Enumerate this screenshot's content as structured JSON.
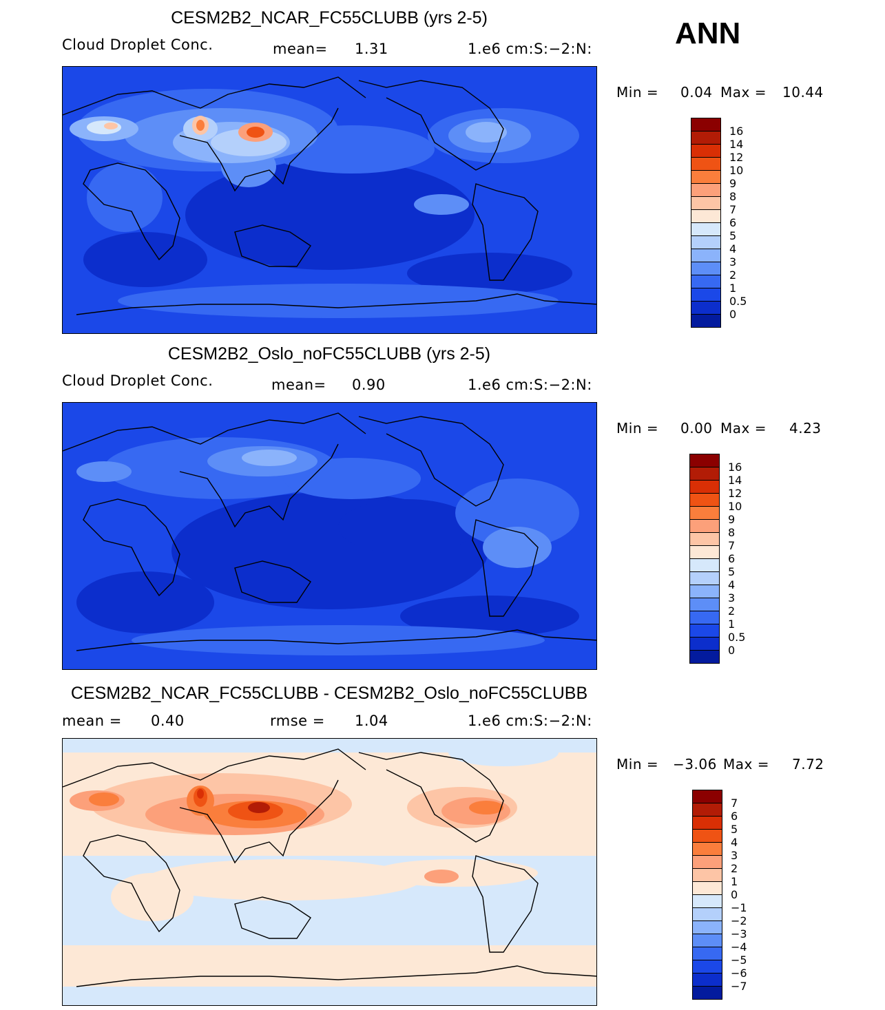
{
  "season": "ANN",
  "panels": [
    {
      "title": "CESM2B2_NCAR_FC55CLUBB (yrs 2-5)",
      "variable": "Cloud Droplet Conc.",
      "stat_text": "mean=",
      "stat_value": "1.31",
      "units": "1.e6 cm:S:-2:N:",
      "min_label": "Min =",
      "min_value": "0.04",
      "max_label": "Max =",
      "max_value": "10.44",
      "colorbar_labels": [
        "16",
        "14",
        "12",
        "10",
        "9",
        "8",
        "7",
        "6",
        "5",
        "4",
        "3",
        "2",
        "1",
        "0.5",
        "0"
      ],
      "colors": [
        "#8b0000",
        "#b21c06",
        "#d92f05",
        "#ef5314",
        "#fa7e3c",
        "#fca07a",
        "#fdc5a6",
        "#fde8d6",
        "#d6e8fb",
        "#b4d0fb",
        "#8bb3fb",
        "#5d8ef7",
        "#3769f2",
        "#1b48e8",
        "#0c2ecc",
        "#031b9e"
      ]
    },
    {
      "title": "CESM2B2_Oslo_noFC55CLUBB (yrs 2-5)",
      "variable": "Cloud Droplet Conc.",
      "stat_text": "mean=",
      "stat_value": "0.90",
      "units": "1.e6 cm:S:-2:N:",
      "min_label": "Min =",
      "min_value": "0.00",
      "max_label": "Max =",
      "max_value": "4.23",
      "colorbar_labels": [
        "16",
        "14",
        "12",
        "10",
        "9",
        "8",
        "7",
        "6",
        "5",
        "4",
        "3",
        "2",
        "1",
        "0.5",
        "0"
      ],
      "colors": [
        "#8b0000",
        "#b21c06",
        "#d92f05",
        "#ef5314",
        "#fa7e3c",
        "#fca07a",
        "#fdc5a6",
        "#fde8d6",
        "#d6e8fb",
        "#b4d0fb",
        "#8bb3fb",
        "#5d8ef7",
        "#3769f2",
        "#1b48e8",
        "#0c2ecc",
        "#031b9e"
      ]
    },
    {
      "title": "CESM2B2_NCAR_FC55CLUBB - CESM2B2_Oslo_noFC55CLUBB",
      "stat_text": "mean =",
      "stat_value": "0.40",
      "stat2_text": "rmse =",
      "stat2_value": "1.04",
      "units": "1.e6 cm:S:-2:N:",
      "min_label": "Min =",
      "min_value": "-3.06",
      "max_label": "Max =",
      "max_value": "7.72",
      "colorbar_labels": [
        "7",
        "6",
        "5",
        "4",
        "3",
        "2",
        "1",
        "0",
        "-1",
        "-2",
        "-3",
        "-4",
        "-5",
        "-6",
        "-7"
      ],
      "colors": [
        "#8b0000",
        "#b21c06",
        "#d92f05",
        "#ef5314",
        "#fa7e3c",
        "#fca07a",
        "#fdc5a6",
        "#fde8d6",
        "#d6e8fb",
        "#b4d0fb",
        "#8bb3fb",
        "#5d8ef7",
        "#3769f2",
        "#1b48e8",
        "#0c2ecc",
        "#031b9e"
      ]
    }
  ]
}
